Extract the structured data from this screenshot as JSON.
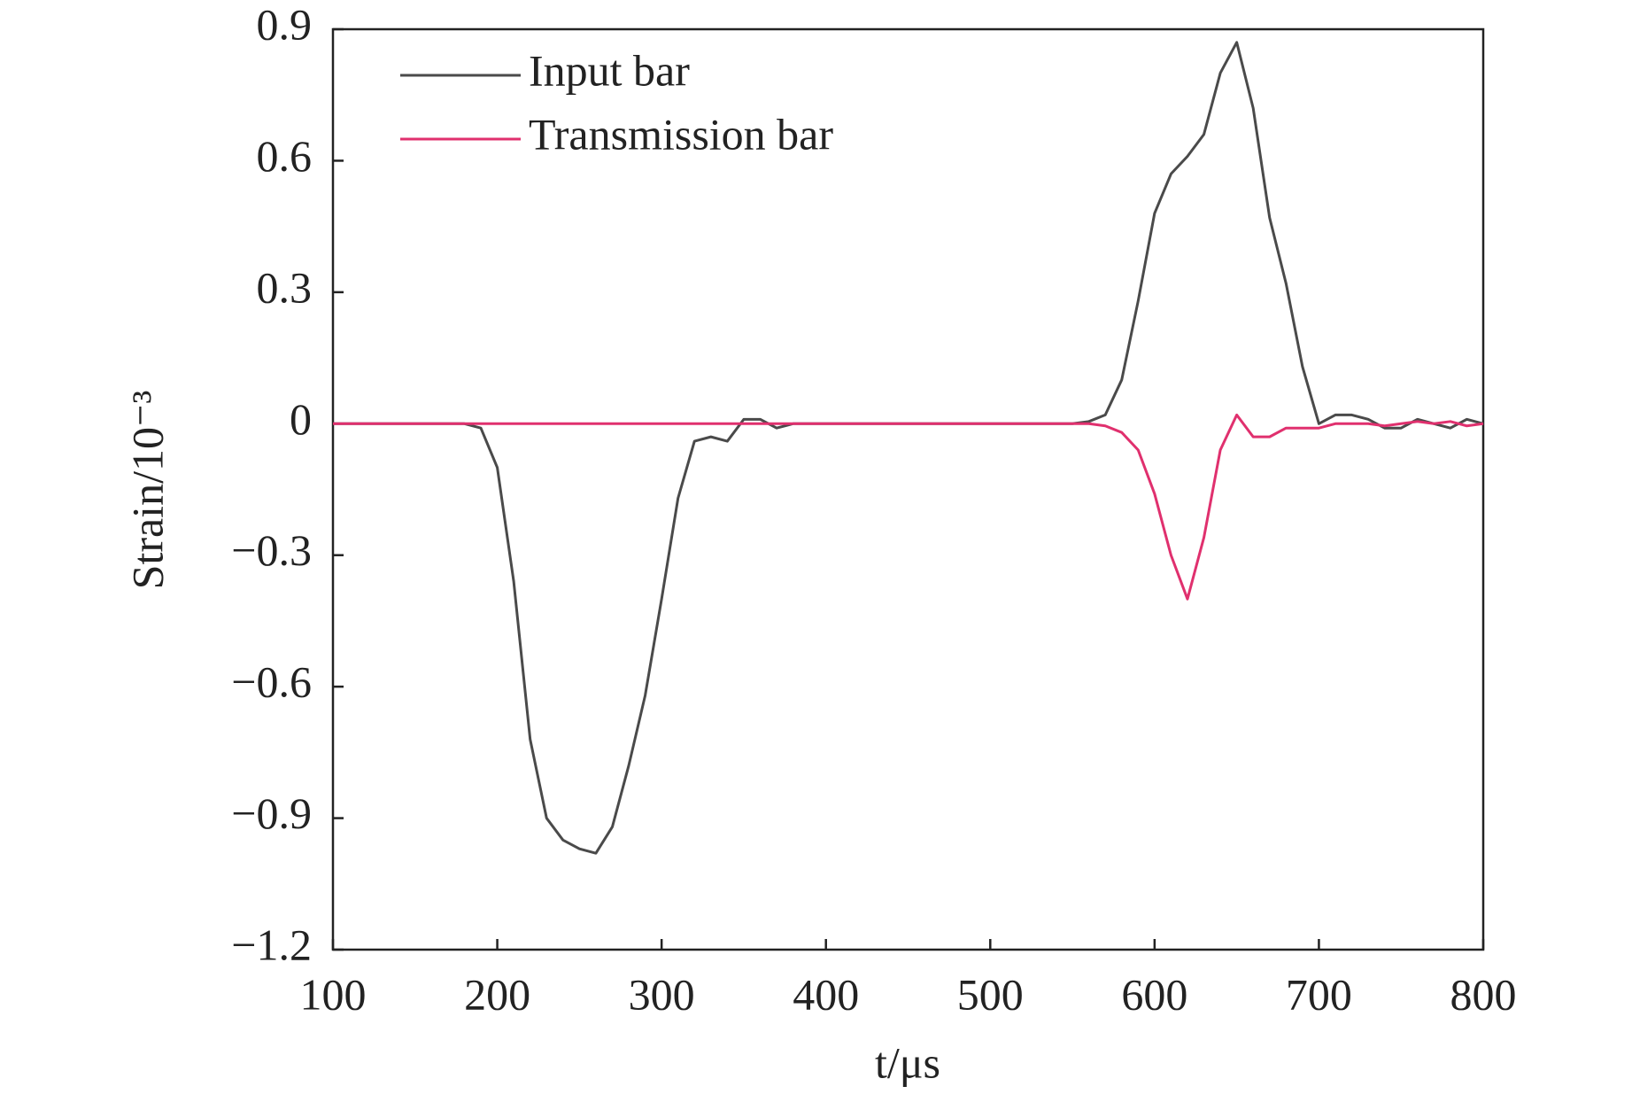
{
  "chart_data": {
    "type": "line",
    "xlabel": "t/μs",
    "ylabel": "Strain/10⁻³",
    "x": [
      100,
      110,
      120,
      130,
      140,
      150,
      160,
      170,
      180,
      190,
      200,
      210,
      220,
      230,
      240,
      250,
      260,
      270,
      280,
      290,
      300,
      310,
      320,
      330,
      340,
      350,
      360,
      370,
      380,
      390,
      400,
      410,
      420,
      430,
      440,
      450,
      460,
      470,
      480,
      490,
      500,
      510,
      520,
      530,
      540,
      550,
      560,
      570,
      580,
      590,
      600,
      610,
      620,
      630,
      640,
      650,
      660,
      670,
      680,
      690,
      700,
      710,
      720,
      730,
      740,
      750,
      760,
      770,
      780,
      790,
      800
    ],
    "series": [
      {
        "name": "Input bar",
        "color": "#4a4a4a",
        "values": [
          0,
          0,
          0,
          0,
          0,
          0,
          0,
          0,
          0,
          -0.01,
          -0.1,
          -0.36,
          -0.72,
          -0.9,
          -0.95,
          -0.97,
          -0.98,
          -0.92,
          -0.78,
          -0.62,
          -0.4,
          -0.17,
          -0.04,
          -0.03,
          -0.04,
          0.01,
          0.01,
          -0.01,
          0,
          0,
          0,
          0,
          0,
          0,
          0,
          0,
          0,
          0,
          0,
          0,
          0,
          0,
          0,
          0,
          0,
          0,
          0.005,
          0.02,
          0.1,
          0.28,
          0.48,
          0.57,
          0.61,
          0.66,
          0.8,
          0.87,
          0.72,
          0.47,
          0.32,
          0.13,
          0,
          0.02,
          0.02,
          0.01,
          -0.01,
          -0.01,
          0.01,
          0,
          -0.01,
          0.01,
          0
        ]
      },
      {
        "name": "Transmission bar",
        "color": "#e0306e",
        "values": [
          0,
          0,
          0,
          0,
          0,
          0,
          0,
          0,
          0,
          0,
          0,
          0,
          0,
          0,
          0,
          0,
          0,
          0,
          0,
          0,
          0,
          0,
          0,
          0,
          0,
          0,
          0,
          0,
          0,
          0,
          0,
          0,
          0,
          0,
          0,
          0,
          0,
          0,
          0,
          0,
          0,
          0,
          0,
          0,
          0,
          0,
          0,
          -0.005,
          -0.02,
          -0.06,
          -0.16,
          -0.3,
          -0.4,
          -0.26,
          -0.06,
          0.02,
          -0.03,
          -0.03,
          -0.01,
          -0.01,
          -0.01,
          0,
          0,
          0,
          -0.005,
          0,
          0.005,
          0,
          0.005,
          -0.005,
          0
        ]
      }
    ],
    "xlim": [
      100,
      800
    ],
    "xticks": [
      100,
      200,
      300,
      400,
      500,
      600,
      700,
      800
    ],
    "ylim": [
      -1.2,
      0.9
    ],
    "yticks": [
      {
        "value": -1.2,
        "label": "−1.2"
      },
      {
        "value": -0.9,
        "label": "−0.9"
      },
      {
        "value": -0.6,
        "label": "−0.6"
      },
      {
        "value": -0.3,
        "label": "−0.3"
      },
      0,
      0.3,
      0.6,
      0.9
    ],
    "legend": "upper-left"
  }
}
